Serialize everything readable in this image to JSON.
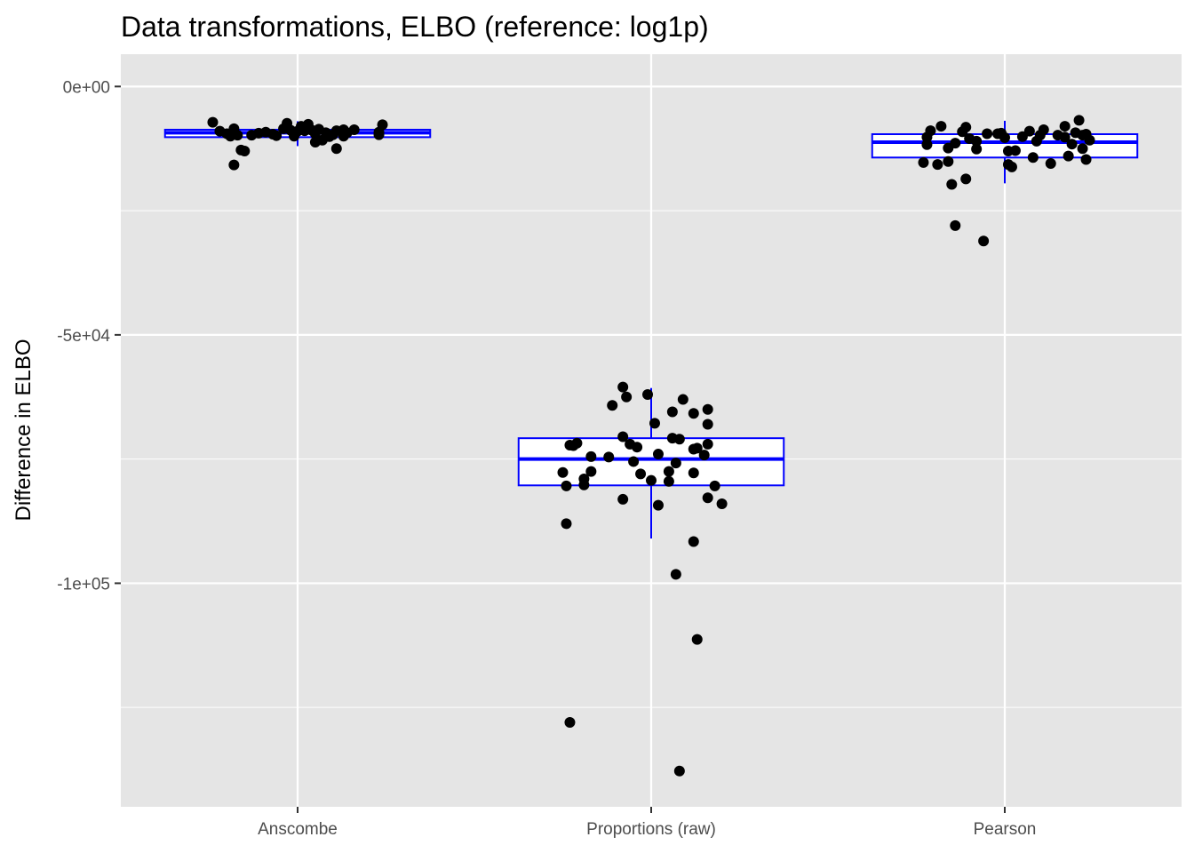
{
  "chart_data": {
    "type": "boxplot",
    "title": "Data transformations, ELBO (reference: log1p)",
    "xlabel": "",
    "ylabel": "Difference in ELBO",
    "categories": [
      "Anscombe",
      "Proportions (raw)",
      "Pearson"
    ],
    "y_ticks": [
      {
        "value": 0,
        "label": "0e+00"
      },
      {
        "value": -50000,
        "label": "-5e+04"
      },
      {
        "value": -100000,
        "label": "-1e+05"
      }
    ],
    "ylim": [
      -145000,
      6500
    ],
    "grid": true,
    "background": "#e5e5e5",
    "box_color": "#0000ff",
    "point_color": "#000000",
    "boxes": [
      {
        "category": "Anscombe",
        "min": -12000,
        "q1": -10200,
        "median": -9300,
        "q3": -8700,
        "max": -7000
      },
      {
        "category": "Proportions (raw)",
        "min": -91000,
        "q1": -80300,
        "median": -75000,
        "q3": -70800,
        "max": -60700
      },
      {
        "category": "Pearson",
        "min": -19500,
        "q1": -14300,
        "median": -11200,
        "q3": -9600,
        "max": -6900
      }
    ],
    "points": [
      {
        "category": "Anscombe",
        "values": [
          {
            "x": -0.24,
            "y": -7200
          },
          {
            "x": -0.22,
            "y": -9000
          },
          {
            "x": -0.2,
            "y": -9500
          },
          {
            "x": -0.18,
            "y": -8500
          },
          {
            "x": -0.19,
            "y": -10000
          },
          {
            "x": -0.17,
            "y": -9800
          },
          {
            "x": -0.18,
            "y": -15800
          },
          {
            "x": -0.16,
            "y": -12800
          },
          {
            "x": -0.15,
            "y": -13000
          },
          {
            "x": -0.13,
            "y": -9800
          },
          {
            "x": -0.11,
            "y": -9400
          },
          {
            "x": -0.09,
            "y": -9200
          },
          {
            "x": -0.07,
            "y": -9600
          },
          {
            "x": -0.06,
            "y": -9900
          },
          {
            "x": -0.04,
            "y": -8500
          },
          {
            "x": -0.03,
            "y": -7400
          },
          {
            "x": -0.02,
            "y": -8800
          },
          {
            "x": -0.01,
            "y": -10000
          },
          {
            "x": 0.0,
            "y": -9000
          },
          {
            "x": 0.01,
            "y": -8000
          },
          {
            "x": 0.02,
            "y": -8900
          },
          {
            "x": 0.03,
            "y": -7600
          },
          {
            "x": 0.04,
            "y": -8800
          },
          {
            "x": 0.05,
            "y": -9500
          },
          {
            "x": 0.05,
            "y": -11200
          },
          {
            "x": 0.06,
            "y": -8600
          },
          {
            "x": 0.07,
            "y": -10800
          },
          {
            "x": 0.08,
            "y": -9300
          },
          {
            "x": 0.09,
            "y": -10100
          },
          {
            "x": 0.1,
            "y": -9700
          },
          {
            "x": 0.11,
            "y": -12500
          },
          {
            "x": 0.11,
            "y": -8900
          },
          {
            "x": 0.13,
            "y": -8700
          },
          {
            "x": 0.14,
            "y": -9300
          },
          {
            "x": 0.16,
            "y": -8700
          },
          {
            "x": 0.23,
            "y": -9700
          },
          {
            "x": 0.24,
            "y": -7700
          },
          {
            "x": 0.23,
            "y": -9200
          },
          {
            "x": 0.13,
            "y": -10000
          }
        ]
      },
      {
        "category": "Proportions (raw)",
        "values": [
          {
            "x": -0.08,
            "y": -60500
          },
          {
            "x": -0.11,
            "y": -64200
          },
          {
            "x": -0.07,
            "y": -62500
          },
          {
            "x": -0.01,
            "y": -62000
          },
          {
            "x": 0.09,
            "y": -63000
          },
          {
            "x": 0.06,
            "y": -65500
          },
          {
            "x": 0.16,
            "y": -65000
          },
          {
            "x": 0.16,
            "y": -68000
          },
          {
            "x": 0.01,
            "y": -67800
          },
          {
            "x": 0.12,
            "y": -65800
          },
          {
            "x": -0.08,
            "y": -70500
          },
          {
            "x": -0.06,
            "y": -72000
          },
          {
            "x": -0.04,
            "y": -72600
          },
          {
            "x": -0.21,
            "y": -71800
          },
          {
            "x": -0.22,
            "y": -72300
          },
          {
            "x": -0.23,
            "y": -72200
          },
          {
            "x": -0.17,
            "y": -74500
          },
          {
            "x": -0.12,
            "y": -74600
          },
          {
            "x": 0.02,
            "y": -74000
          },
          {
            "x": 0.06,
            "y": -70800
          },
          {
            "x": 0.08,
            "y": -71000
          },
          {
            "x": 0.12,
            "y": -73000
          },
          {
            "x": 0.13,
            "y": -72800
          },
          {
            "x": 0.15,
            "y": -74200
          },
          {
            "x": 0.16,
            "y": -72000
          },
          {
            "x": -0.05,
            "y": -75500
          },
          {
            "x": 0.07,
            "y": -75800
          },
          {
            "x": -0.25,
            "y": -77700
          },
          {
            "x": -0.17,
            "y": -77500
          },
          {
            "x": -0.03,
            "y": -78000
          },
          {
            "x": 0.0,
            "y": -79300
          },
          {
            "x": 0.05,
            "y": -77500
          },
          {
            "x": 0.12,
            "y": -77800
          },
          {
            "x": -0.24,
            "y": -80400
          },
          {
            "x": -0.19,
            "y": -79000
          },
          {
            "x": -0.19,
            "y": -80200
          },
          {
            "x": -0.08,
            "y": -83100
          },
          {
            "x": 0.02,
            "y": -84300
          },
          {
            "x": 0.05,
            "y": -79500
          },
          {
            "x": 0.18,
            "y": -80400
          },
          {
            "x": 0.16,
            "y": -82800
          },
          {
            "x": 0.2,
            "y": -84000
          },
          {
            "x": -0.24,
            "y": -88000
          },
          {
            "x": 0.12,
            "y": -91600
          },
          {
            "x": 0.07,
            "y": -98200
          },
          {
            "x": 0.13,
            "y": -111300
          },
          {
            "x": -0.23,
            "y": -128000
          },
          {
            "x": 0.08,
            "y": -137800
          }
        ]
      },
      {
        "category": "Pearson",
        "values": [
          {
            "x": -0.23,
            "y": -15300
          },
          {
            "x": -0.22,
            "y": -11700
          },
          {
            "x": -0.22,
            "y": -10200
          },
          {
            "x": -0.21,
            "y": -8900
          },
          {
            "x": -0.19,
            "y": -15700
          },
          {
            "x": -0.18,
            "y": -8000
          },
          {
            "x": -0.16,
            "y": -12400
          },
          {
            "x": -0.16,
            "y": -15100
          },
          {
            "x": -0.15,
            "y": -19700
          },
          {
            "x": -0.14,
            "y": -11400
          },
          {
            "x": -0.12,
            "y": -9100
          },
          {
            "x": -0.11,
            "y": -8200
          },
          {
            "x": -0.1,
            "y": -10500
          },
          {
            "x": -0.11,
            "y": -18600
          },
          {
            "x": -0.08,
            "y": -11000
          },
          {
            "x": -0.08,
            "y": -12600
          },
          {
            "x": -0.14,
            "y": -28000
          },
          {
            "x": -0.05,
            "y": -9500
          },
          {
            "x": -0.02,
            "y": -9500
          },
          {
            "x": -0.01,
            "y": -9400
          },
          {
            "x": -0.06,
            "y": -31100
          },
          {
            "x": 0.0,
            "y": -10300
          },
          {
            "x": 0.01,
            "y": -13000
          },
          {
            "x": 0.01,
            "y": -15700
          },
          {
            "x": 0.02,
            "y": -16200
          },
          {
            "x": 0.03,
            "y": -12900
          },
          {
            "x": 0.05,
            "y": -10100
          },
          {
            "x": 0.07,
            "y": -9000
          },
          {
            "x": 0.08,
            "y": -14300
          },
          {
            "x": 0.09,
            "y": -11000
          },
          {
            "x": 0.1,
            "y": -9800
          },
          {
            "x": 0.11,
            "y": -8700
          },
          {
            "x": 0.13,
            "y": -15500
          },
          {
            "x": 0.15,
            "y": -9800
          },
          {
            "x": 0.17,
            "y": -8000
          },
          {
            "x": 0.17,
            "y": -10200
          },
          {
            "x": 0.18,
            "y": -14000
          },
          {
            "x": 0.19,
            "y": -11600
          },
          {
            "x": 0.2,
            "y": -9300
          },
          {
            "x": 0.21,
            "y": -6800
          },
          {
            "x": 0.22,
            "y": -12500
          },
          {
            "x": 0.22,
            "y": -9800
          },
          {
            "x": 0.23,
            "y": -14700
          },
          {
            "x": 0.23,
            "y": -9600
          },
          {
            "x": 0.24,
            "y": -10800
          }
        ]
      }
    ]
  }
}
